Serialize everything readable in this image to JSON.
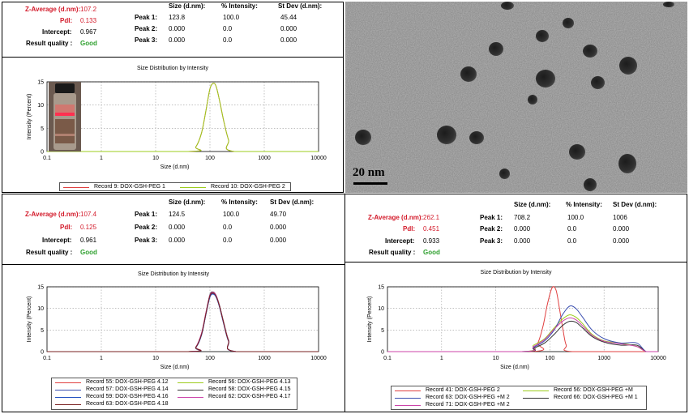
{
  "panels": [
    {
      "stats": {
        "z_label": "Z-Average (d.nm):",
        "z_value": "107.2",
        "pdi_label": "PdI:",
        "pdi_value": "0.133",
        "int_label": "Intercept:",
        "int_value": "0.967",
        "rq_label": "Result quality :",
        "rq_value": "Good",
        "col_size": "Size (d.nm):",
        "col_int": "% Intensity:",
        "col_sd": "St Dev (d.nm):",
        "peaks": [
          {
            "label": "Peak 1:",
            "size": "123.8",
            "intensity": "100.0",
            "sd": "45.44"
          },
          {
            "label": "Peak 2:",
            "size": "0.000",
            "intensity": "0.0",
            "sd": "0.000"
          },
          {
            "label": "Peak 3:",
            "size": "0.000",
            "intensity": "0.0",
            "sd": "0.000"
          }
        ]
      },
      "chart_title": "Size Distribution by Intensity"
    },
    {
      "stats": {
        "z_label": "Z-Average (d.nm):",
        "z_value": "107.4",
        "pdi_label": "PdI:",
        "pdi_value": "0.125",
        "int_label": "Intercept:",
        "int_value": "0.961",
        "rq_label": "Result quality :",
        "rq_value": "Good",
        "col_size": "Size (d.nm):",
        "col_int": "% Intensity:",
        "col_sd": "St Dev (d.nm):",
        "peaks": [
          {
            "label": "Peak 1:",
            "size": "124.5",
            "intensity": "100.0",
            "sd": "49.70"
          },
          {
            "label": "Peak 2:",
            "size": "0.000",
            "intensity": "0.0",
            "sd": "0.000"
          },
          {
            "label": "Peak 3:",
            "size": "0.000",
            "intensity": "0.0",
            "sd": "0.000"
          }
        ]
      },
      "chart_title": "Size Distribution by Intensity"
    },
    {
      "stats": {
        "z_label": "Z-Average (d.nm):",
        "z_value": "262.1",
        "pdi_label": "PdI:",
        "pdi_value": "0.451",
        "int_label": "Intercept:",
        "int_value": "0.933",
        "rq_label": "Result quality :",
        "rq_value": "Good",
        "col_size": "Size (d.nm):",
        "col_int": "% Intensity:",
        "col_sd": "St Dev (d.nm):",
        "peaks": [
          {
            "label": "Peak 1:",
            "size": "708.2",
            "intensity": "100.0",
            "sd": "1006"
          },
          {
            "label": "Peak 2:",
            "size": "0.000",
            "intensity": "0.0",
            "sd": "0.000"
          },
          {
            "label": "Peak 3:",
            "size": "0.000",
            "intensity": "0.0",
            "sd": "0.000"
          }
        ]
      },
      "chart_title": "Size Distribution by Intensity"
    }
  ],
  "tem": {
    "scale_label": "20 nm"
  },
  "chart_data": [
    {
      "type": "line",
      "title": "Size Distribution by Intensity",
      "xlabel": "Size (d.nm)",
      "ylabel": "Intensity (Percent)",
      "x_scale": "log",
      "xlim": [
        0.1,
        10000
      ],
      "ylim": [
        0,
        15
      ],
      "x_ticks": [
        "0.1",
        "1",
        "10",
        "100",
        "1000",
        "10000"
      ],
      "y_ticks": [
        "0",
        "5",
        "10",
        "15"
      ],
      "grid": true,
      "series": [
        {
          "name": "Record 9: DOX-GSH-PEG 1",
          "color": "#e04040",
          "x": [
            0.1,
            40,
            55,
            70,
            85,
            100,
            115,
            130,
            150,
            180,
            220,
            280,
            10000
          ],
          "y": [
            0,
            0,
            1,
            4,
            9,
            13.5,
            14.7,
            14,
            11,
            6.5,
            2.5,
            0,
            0
          ]
        },
        {
          "name": "Record 10: DOX-GSH-PEG 2",
          "color": "#9ccc1c",
          "x": [
            0.1,
            40,
            55,
            70,
            85,
            100,
            115,
            130,
            150,
            180,
            220,
            280,
            10000
          ],
          "y": [
            0,
            0,
            1,
            4,
            9,
            13.5,
            14.7,
            14,
            11,
            6.5,
            2.5,
            0,
            0
          ]
        }
      ],
      "legend": "bottom"
    },
    {
      "type": "line",
      "title": "Size Distribution by Intensity",
      "xlabel": "Size (d.nm)",
      "ylabel": "Intensity (Percent)",
      "x_scale": "log",
      "xlim": [
        0.1,
        10000
      ],
      "ylim": [
        0,
        15
      ],
      "x_ticks": [
        "0.1",
        "1",
        "10",
        "100",
        "1000",
        "10000"
      ],
      "y_ticks": [
        "0",
        "5",
        "10",
        "15"
      ],
      "grid": true,
      "series": [
        {
          "name": "Record 55: DOX-GSH-PEG 4.12",
          "color": "#e04040",
          "x": [
            0.1,
            40,
            55,
            70,
            85,
            100,
            115,
            130,
            150,
            180,
            220,
            300,
            10000
          ],
          "y": [
            0,
            0,
            1,
            4,
            9,
            12.8,
            13.5,
            12.8,
            10.5,
            6.5,
            2.5,
            0,
            0
          ]
        },
        {
          "name": "Record 56: DOX-GSH-PEG 4.13",
          "color": "#9ccc1c",
          "x": [
            0.1,
            40,
            55,
            70,
            85,
            100,
            115,
            130,
            150,
            180,
            220,
            300,
            10000
          ],
          "y": [
            0,
            0,
            1.1,
            4.2,
            9.2,
            13,
            13.6,
            12.9,
            10.6,
            6.6,
            2.6,
            0,
            0
          ]
        },
        {
          "name": "Record 57: DOX-GSH-PEG 4.14",
          "color": "#3b4fb0",
          "x": [
            0.1,
            40,
            55,
            70,
            85,
            100,
            115,
            130,
            150,
            180,
            220,
            300,
            10000
          ],
          "y": [
            0,
            0,
            0.9,
            3.8,
            8.8,
            12.6,
            13.4,
            12.7,
            10.4,
            6.4,
            2.4,
            0,
            0
          ]
        },
        {
          "name": "Record 58: DOX-GSH-PEG 4.15",
          "color": "#333333",
          "x": [
            0.1,
            40,
            55,
            70,
            85,
            100,
            115,
            130,
            150,
            180,
            220,
            300,
            10000
          ],
          "y": [
            0,
            0,
            1,
            4.1,
            9.1,
            13.2,
            13.8,
            13,
            10.7,
            6.7,
            2.7,
            0,
            0
          ]
        },
        {
          "name": "Record 59: DOX-GSH-PEG 4.16",
          "color": "#2050c0",
          "x": [
            0.1,
            40,
            55,
            70,
            85,
            100,
            115,
            130,
            150,
            180,
            220,
            300,
            10000
          ],
          "y": [
            0,
            0,
            1,
            3.9,
            8.9,
            12.7,
            13.3,
            12.6,
            10.3,
            6.3,
            2.4,
            0,
            0
          ]
        },
        {
          "name": "Record 62: DOX-GSH-PEG 4.17",
          "color": "#cc44aa",
          "x": [
            0.1,
            40,
            55,
            70,
            85,
            100,
            115,
            130,
            150,
            180,
            220,
            300,
            10000
          ],
          "y": [
            0,
            0,
            1.1,
            4.3,
            9.3,
            13.1,
            13.7,
            13,
            10.6,
            6.6,
            2.6,
            0,
            0
          ]
        },
        {
          "name": "Record 63: DOX-GSH-PEG 4.18",
          "color": "#7a2020",
          "x": [
            0.1,
            40,
            55,
            70,
            85,
            100,
            115,
            130,
            150,
            180,
            220,
            300,
            10000
          ],
          "y": [
            0,
            0,
            1,
            4,
            9,
            12.9,
            13.5,
            12.8,
            10.5,
            6.5,
            2.5,
            0,
            0
          ]
        }
      ],
      "legend": "bottom"
    },
    {
      "type": "line",
      "title": "Size Distribution by Intensity",
      "xlabel": "Size (d.nm)",
      "ylabel": "Intensity (Percent)",
      "x_scale": "log",
      "xlim": [
        0.1,
        10000
      ],
      "ylim": [
        0,
        15
      ],
      "x_ticks": [
        "0.1",
        "1",
        "10",
        "100",
        "1000",
        "10000"
      ],
      "y_ticks": [
        "0",
        "5",
        "10",
        "15"
      ],
      "grid": true,
      "series": [
        {
          "name": "Record 41: DOX-GSH-PEG 2",
          "color": "#e04040",
          "x": [
            0.1,
            45,
            60,
            75,
            90,
            110,
            130,
            150,
            175,
            200,
            260,
            10000
          ],
          "y": [
            0,
            0,
            2,
            6,
            11,
            14.8,
            14.2,
            10,
            5,
            1.5,
            0,
            0
          ]
        },
        {
          "name": "Record 56: DOX-GSH-PEG +M",
          "color": "#9ccc1c",
          "x": [
            0.1,
            30,
            50,
            80,
            120,
            170,
            230,
            300,
            400,
            600,
            1000,
            2000,
            4000,
            6000,
            10000
          ],
          "y": [
            0,
            0,
            1.5,
            3,
            5.5,
            7.5,
            8.5,
            8,
            6.5,
            4,
            2.5,
            2,
            1.2,
            0,
            0
          ]
        },
        {
          "name": "Record 63: DOX-GSH-PEG +M 2",
          "color": "#3b4fb0",
          "x": [
            0.1,
            30,
            50,
            80,
            120,
            170,
            230,
            300,
            400,
            600,
            1000,
            2000,
            4000,
            6000,
            10000
          ],
          "y": [
            0,
            0,
            1,
            2.5,
            5,
            8.5,
            10.5,
            10,
            8,
            5,
            3,
            2,
            2,
            0,
            0
          ]
        },
        {
          "name": "Record 66: DOX-GSH-PEG +M 1",
          "color": "#333333",
          "x": [
            0.1,
            30,
            50,
            80,
            120,
            170,
            230,
            300,
            400,
            600,
            1000,
            2000,
            4000,
            6000,
            10000
          ],
          "y": [
            0,
            0,
            0.8,
            2,
            4,
            6,
            7,
            6.8,
            5.5,
            3.5,
            2.2,
            1.5,
            1.5,
            0,
            0
          ]
        },
        {
          "name": "Record 71: DOX-GSH-PEG +M 2",
          "color": "#cc44aa",
          "x": [
            0.1,
            30,
            50,
            80,
            120,
            170,
            230,
            300,
            400,
            600,
            1000,
            2000,
            4000,
            6000,
            10000
          ],
          "y": [
            0,
            0,
            1.2,
            2.8,
            5.2,
            7,
            7.8,
            7.4,
            6,
            3.8,
            2.4,
            1.8,
            1.2,
            0,
            0
          ]
        }
      ],
      "legend": "bottom"
    }
  ]
}
